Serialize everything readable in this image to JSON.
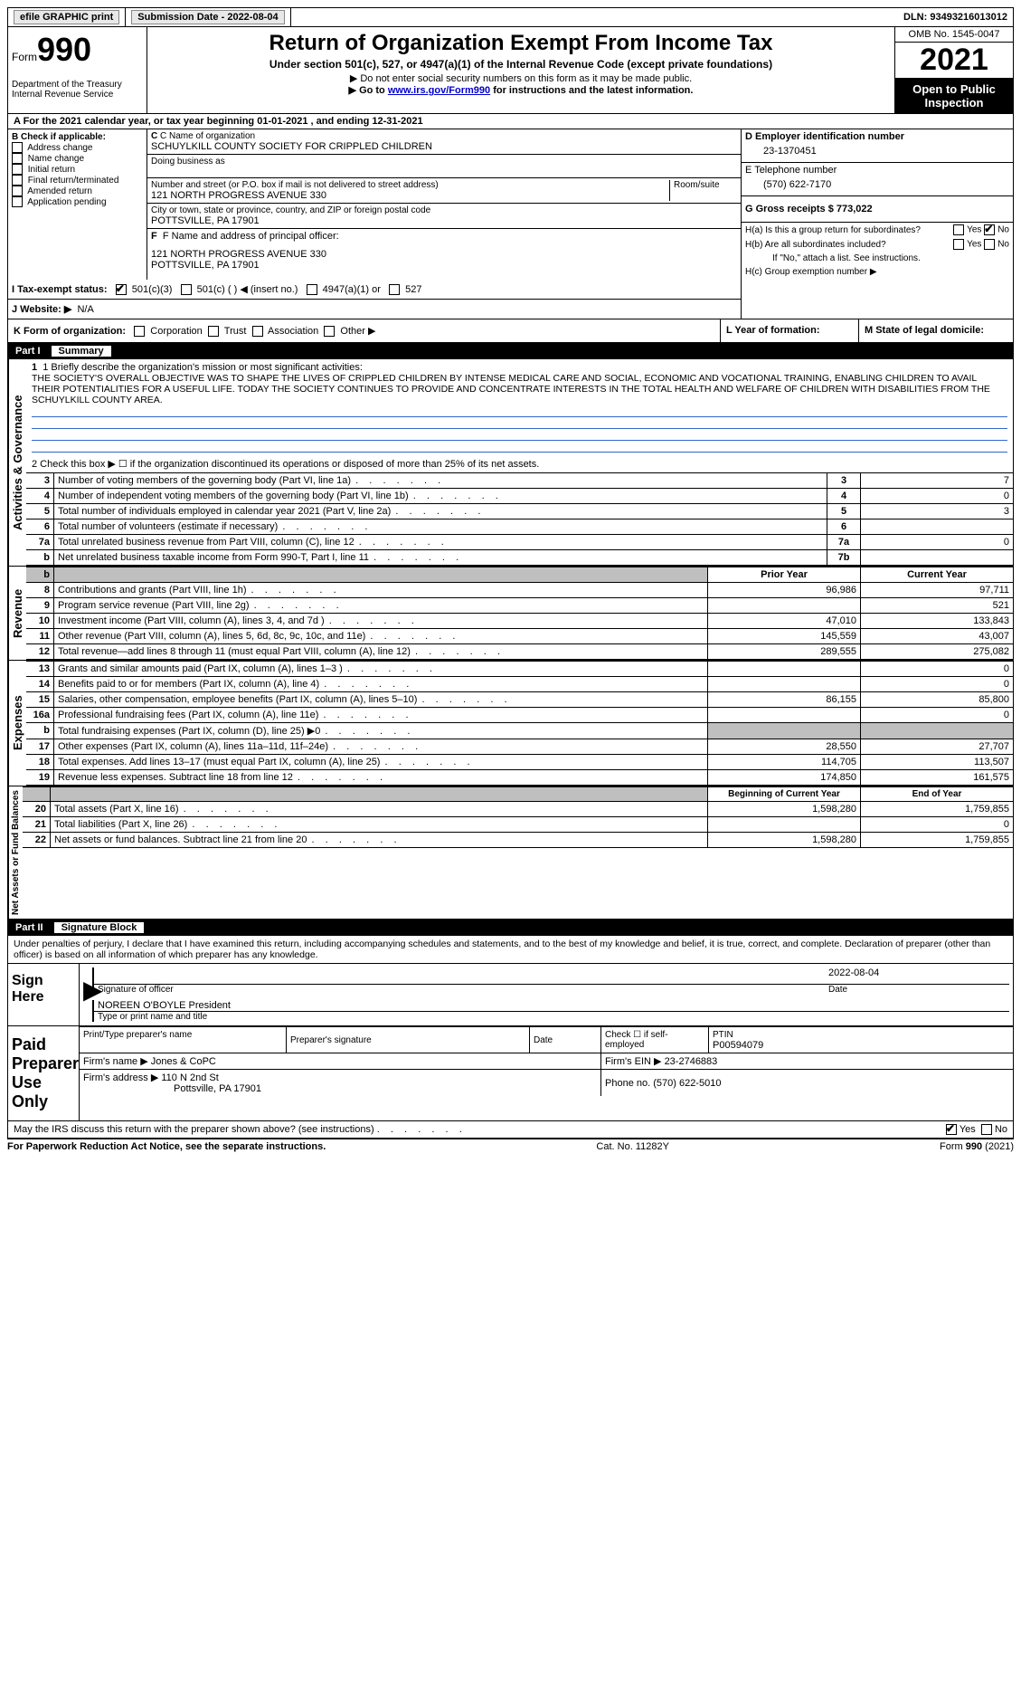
{
  "topbar": {
    "efile": "efile GRAPHIC print",
    "submission_label": "Submission Date - ",
    "submission_date": "2022-08-04",
    "dln_label": "DLN: ",
    "dln": "93493216013012"
  },
  "header": {
    "form_word": "Form",
    "form_num": "990",
    "dept": "Department of the Treasury",
    "irs": "Internal Revenue Service",
    "title": "Return of Organization Exempt From Income Tax",
    "sub1": "Under section 501(c), 527, or 4947(a)(1) of the Internal Revenue Code (except private foundations)",
    "sub2": "▶ Do not enter social security numbers on this form as it may be made public.",
    "sub3_pre": "▶ Go to ",
    "sub3_link": "www.irs.gov/Form990",
    "sub3_post": " for instructions and the latest information.",
    "omb": "OMB No. 1545-0047",
    "year": "2021",
    "inspect": "Open to Public Inspection"
  },
  "period": {
    "a": "A For the 2021 calendar year, or tax year beginning ",
    "begin": "01-01-2021",
    "mid": " , and ending ",
    "end": "12-31-2021"
  },
  "boxB": {
    "title": "B Check if applicable:",
    "opts": [
      "Address change",
      "Name change",
      "Initial return",
      "Final return/terminated",
      "Amended return",
      "Application pending"
    ]
  },
  "boxC": {
    "name_label": "C Name of organization",
    "name": "SCHUYLKILL COUNTY SOCIETY FOR CRIPPLED CHILDREN",
    "dba_label": "Doing business as",
    "street_label": "Number and street (or P.O. box if mail is not delivered to street address)",
    "room_label": "Room/suite",
    "street": "121 NORTH PROGRESS AVENUE 330",
    "city_label": "City or town, state or province, country, and ZIP or foreign postal code",
    "city": "POTTSVILLE, PA  17901",
    "f_label": "F  Name and address of principal officer:",
    "f_addr1": "121 NORTH PROGRESS AVENUE 330",
    "f_addr2": "POTTSVILLE, PA  17901"
  },
  "boxD": {
    "label": "D Employer identification number",
    "value": "23-1370451"
  },
  "boxE": {
    "label": "E Telephone number",
    "value": "(570) 622-7170"
  },
  "boxG": {
    "label": "G Gross receipts $ ",
    "value": "773,022"
  },
  "boxH": {
    "a": "H(a)  Is this a group return for subordinates?",
    "b": "H(b)  Are all subordinates included?",
    "note": "If \"No,\" attach a list. See instructions.",
    "c": "H(c)  Group exemption number ▶",
    "yes": "Yes",
    "no": "No"
  },
  "boxI": {
    "label": "I   Tax-exempt status:",
    "o1": "501(c)(3)",
    "o2": "501(c) (  ) ◀ (insert no.)",
    "o3": "4947(a)(1) or",
    "o4": "527"
  },
  "boxJ": {
    "label": "J   Website: ▶",
    "value": "N/A"
  },
  "boxK": {
    "label": "K Form of organization:",
    "opts": [
      "Corporation",
      "Trust",
      "Association",
      "Other ▶"
    ]
  },
  "boxL": {
    "label": "L Year of formation:"
  },
  "boxM": {
    "label": "M State of legal domicile:"
  },
  "part1": {
    "label": "Part I",
    "title": "Summary"
  },
  "summary": {
    "q1_label": "1  Briefly describe the organization's mission or most significant activities:",
    "q1_text": "THE SOCIETY'S OVERALL OBJECTIVE WAS TO SHAPE THE LIVES OF CRIPPLED CHILDREN BY INTENSE MEDICAL CARE AND SOCIAL, ECONOMIC AND VOCATIONAL TRAINING, ENABLING CHILDREN TO AVAIL THEIR POTENTIALITIES FOR A USEFUL LIFE. TODAY THE SOCIETY CONTINUES TO PROVIDE AND CONCENTRATE INTERESTS IN THE TOTAL HEALTH AND WELFARE OF CHILDREN WITH DISABILITIES FROM THE SCHUYLKILL COUNTY AREA.",
    "q2": "2    Check this box ▶ ☐  if the organization discontinued its operations or disposed of more than 25% of its net assets.",
    "rows_simple": [
      {
        "n": "3",
        "label": "Number of voting members of the governing body (Part VI, line 1a)",
        "box": "3",
        "val": "7"
      },
      {
        "n": "4",
        "label": "Number of independent voting members of the governing body (Part VI, line 1b)",
        "box": "4",
        "val": "0"
      },
      {
        "n": "5",
        "label": "Total number of individuals employed in calendar year 2021 (Part V, line 2a)",
        "box": "5",
        "val": "3"
      },
      {
        "n": "6",
        "label": "Total number of volunteers (estimate if necessary)",
        "box": "6",
        "val": ""
      },
      {
        "n": "7a",
        "label": "Total unrelated business revenue from Part VIII, column (C), line 12",
        "box": "7a",
        "val": "0"
      },
      {
        "n": "b",
        "label": "Net unrelated business taxable income from Form 990-T, Part I, line 11",
        "box": "7b",
        "val": ""
      }
    ],
    "col_hdr_prior": "Prior Year",
    "col_hdr_curr": "Current Year",
    "rev_rows": [
      {
        "n": "8",
        "label": "Contributions and grants (Part VIII, line 1h)",
        "p": "96,986",
        "c": "97,711"
      },
      {
        "n": "9",
        "label": "Program service revenue (Part VIII, line 2g)",
        "p": "",
        "c": "521"
      },
      {
        "n": "10",
        "label": "Investment income (Part VIII, column (A), lines 3, 4, and 7d )",
        "p": "47,010",
        "c": "133,843"
      },
      {
        "n": "11",
        "label": "Other revenue (Part VIII, column (A), lines 5, 6d, 8c, 9c, 10c, and 11e)",
        "p": "145,559",
        "c": "43,007"
      },
      {
        "n": "12",
        "label": "Total revenue—add lines 8 through 11 (must equal Part VIII, column (A), line 12)",
        "p": "289,555",
        "c": "275,082"
      }
    ],
    "exp_rows": [
      {
        "n": "13",
        "label": "Grants and similar amounts paid (Part IX, column (A), lines 1–3 )",
        "p": "",
        "c": "0"
      },
      {
        "n": "14",
        "label": "Benefits paid to or for members (Part IX, column (A), line 4)",
        "p": "",
        "c": "0"
      },
      {
        "n": "15",
        "label": "Salaries, other compensation, employee benefits (Part IX, column (A), lines 5–10)",
        "p": "86,155",
        "c": "85,800"
      },
      {
        "n": "16a",
        "label": "Professional fundraising fees (Part IX, column (A), line 11e)",
        "p": "",
        "c": "0"
      },
      {
        "n": "b",
        "label": "Total fundraising expenses (Part IX, column (D), line 25) ▶0",
        "p": "SHADE",
        "c": "SHADE"
      },
      {
        "n": "17",
        "label": "Other expenses (Part IX, column (A), lines 11a–11d, 11f–24e)",
        "p": "28,550",
        "c": "27,707"
      },
      {
        "n": "18",
        "label": "Total expenses. Add lines 13–17 (must equal Part IX, column (A), line 25)",
        "p": "114,705",
        "c": "113,507"
      },
      {
        "n": "19",
        "label": "Revenue less expenses. Subtract line 18 from line 12",
        "p": "174,850",
        "c": "161,575"
      }
    ],
    "col_hdr_beg": "Beginning of Current Year",
    "col_hdr_end": "End of Year",
    "net_rows": [
      {
        "n": "20",
        "label": "Total assets (Part X, line 16)",
        "p": "1,598,280",
        "c": "1,759,855"
      },
      {
        "n": "21",
        "label": "Total liabilities (Part X, line 26)",
        "p": "",
        "c": "0"
      },
      {
        "n": "22",
        "label": "Net assets or fund balances. Subtract line 21 from line 20",
        "p": "1,598,280",
        "c": "1,759,855"
      }
    ],
    "side_ag": "Activities & Governance",
    "side_rev": "Revenue",
    "side_exp": "Expenses",
    "side_net": "Net Assets or Fund Balances"
  },
  "part2": {
    "label": "Part II",
    "title": "Signature Block"
  },
  "sig": {
    "penalty": "Under penalties of perjury, I declare that I have examined this return, including accompanying schedules and statements, and to the best of my knowledge and belief, it is true, correct, and complete. Declaration of preparer (other than officer) is based on all information of which preparer has any knowledge.",
    "sign_here": "Sign Here",
    "sig_officer": "Signature of officer",
    "date": "Date",
    "sig_date_val": "2022-08-04",
    "name_title": "NOREEN O'BOYLE  President",
    "name_title_label": "Type or print name and title",
    "paid": "Paid Preparer Use Only",
    "pt_name": "Print/Type preparer's name",
    "pt_sig": "Preparer's signature",
    "pt_date": "Date",
    "pt_check": "Check ☐ if self-employed",
    "ptin_label": "PTIN",
    "ptin": "P00594079",
    "firm_name_label": "Firm's name    ▶ ",
    "firm_name": "Jones & CoPC",
    "firm_ein_label": "Firm's EIN ▶ ",
    "firm_ein": "23-2746883",
    "firm_addr_label": "Firm's address ▶ ",
    "firm_addr": "110 N 2nd St",
    "firm_city": "Pottsville, PA  17901",
    "phone_label": "Phone no. ",
    "phone": "(570) 622-5010",
    "discuss": "May the IRS discuss this return with the preparer shown above? (see instructions)",
    "yes": "Yes",
    "no": "No"
  },
  "footer": {
    "pra": "For Paperwork Reduction Act Notice, see the separate instructions.",
    "cat": "Cat. No. 11282Y",
    "form": "Form 990 (2021)"
  }
}
